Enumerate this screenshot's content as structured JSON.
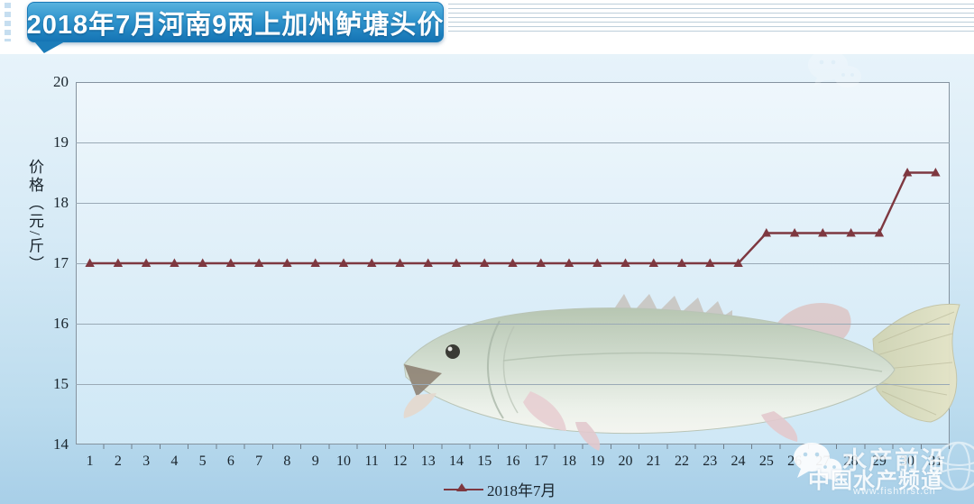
{
  "banner": {
    "title": "2018年7月河南9两上加州鲈塘头价"
  },
  "chart_data": {
    "type": "line",
    "title": "2018年7月河南9两上加州鲈塘头价",
    "x": [
      1,
      2,
      3,
      4,
      5,
      6,
      7,
      8,
      9,
      10,
      11,
      12,
      13,
      14,
      15,
      16,
      17,
      18,
      19,
      20,
      21,
      22,
      23,
      24,
      25,
      26,
      27,
      28,
      29,
      30,
      31
    ],
    "series": [
      {
        "name": "2018年7月",
        "color": "#7e3840",
        "values": [
          17,
          17,
          17,
          17,
          17,
          17,
          17,
          17,
          17,
          17,
          17,
          17,
          17,
          17,
          17,
          17,
          17,
          17,
          17,
          17,
          17,
          17,
          17,
          17,
          17.5,
          17.5,
          17.5,
          17.5,
          17.5,
          18.5,
          18.5
        ]
      }
    ],
    "xlabel": "",
    "ylabel": "价格（元/斤）",
    "ylim": [
      14,
      20
    ],
    "yticks": [
      20,
      19,
      18,
      17,
      16,
      15,
      14
    ],
    "grid": "horizontal",
    "legend_position": "bottom-center",
    "marker": "triangle"
  },
  "watermarks": {
    "bottom_right": {
      "brand": "水产前沿",
      "channel": "中国水产频道",
      "url": "www.fishfirst.cn",
      "left_icon": "wechat-bubbles-icon",
      "right_icon": "globe-icon"
    },
    "top_right": {
      "icon": "wechat-bubbles-icon"
    }
  },
  "decor": {
    "fish_image": "largemouth-bass-photo"
  },
  "colors": {
    "banner_blue": "#2f94cd",
    "line_maroon": "#7e3840",
    "grid_gray": "#9aaab6",
    "bg_blue_top": "#e7f3fa",
    "bg_blue_bottom": "#a8cfe8"
  }
}
